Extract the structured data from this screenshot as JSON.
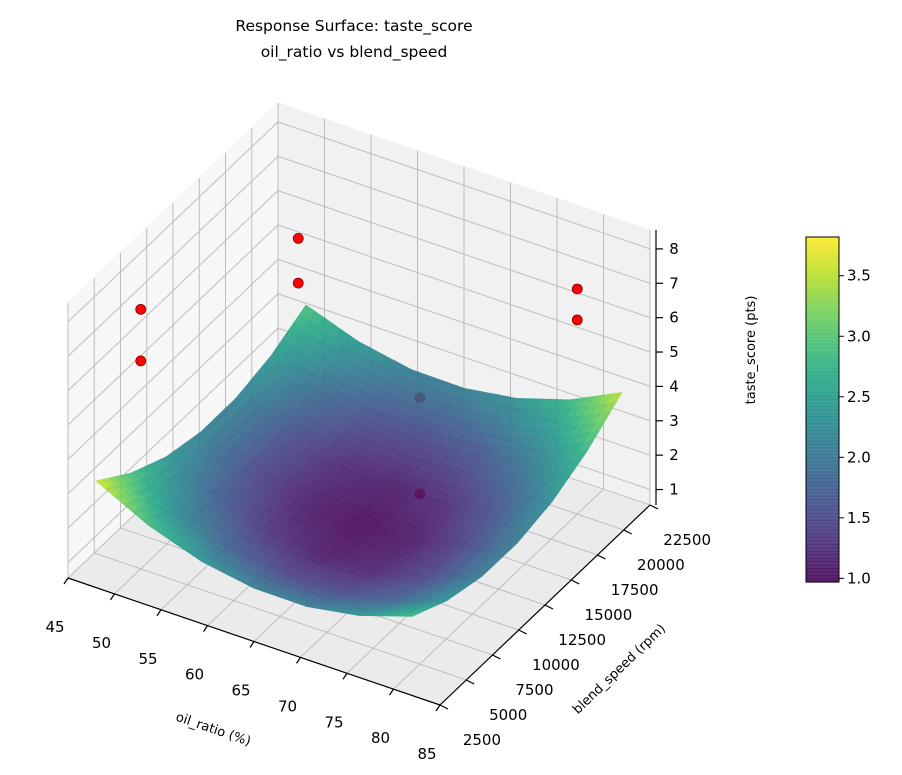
{
  "chart_data": {
    "type": "surface3d",
    "title": [
      "Response Surface: taste_score",
      "oil_ratio vs blend_speed"
    ],
    "xlabel": "oil_ratio (%)",
    "ylabel": "blend_speed (rpm)",
    "zlabel": "taste_score (pts)",
    "xlim": [
      45,
      85
    ],
    "ylim": [
      2500,
      22500
    ],
    "zlim": [
      0.55,
      8.55
    ],
    "x_ticks": [
      "45",
      "50",
      "55",
      "60",
      "65",
      "70",
      "75",
      "80",
      "85"
    ],
    "y_ticks": [
      "2500",
      "5000",
      "7500",
      "10000",
      "12500",
      "15000",
      "17500",
      "20000",
      "22500"
    ],
    "z_ticks": [
      "1",
      "2",
      "3",
      "4",
      "5",
      "6",
      "7",
      "8"
    ],
    "grid": true,
    "colormap": "viridis",
    "surface": {
      "x": [
        48,
        53.67,
        59.33,
        65,
        70.67,
        76.33,
        82
      ],
      "y": [
        2500,
        5833,
        9167,
        12500,
        15833,
        19167,
        22500
      ],
      "z": [
        [
          3.65,
          2.88,
          2.36,
          2.1,
          2.09,
          2.35,
          2.85
        ],
        [
          2.91,
          2.17,
          1.7,
          1.47,
          1.51,
          1.79,
          2.34
        ],
        [
          2.41,
          1.72,
          1.28,
          1.1,
          1.17,
          1.5,
          2.08
        ],
        [
          2.17,
          1.51,
          1.12,
          0.97,
          1.08,
          1.45,
          2.07
        ],
        [
          2.18,
          1.56,
          1.2,
          1.1,
          1.25,
          1.65,
          2.31
        ],
        [
          2.44,
          1.86,
          1.54,
          1.47,
          1.66,
          2.11,
          2.81
        ],
        [
          2.95,
          2.41,
          2.12,
          2.1,
          2.33,
          2.81,
          3.55
        ]
      ]
    },
    "points": [
      {
        "x": 50,
        "y": 5000,
        "z": 8.1
      },
      {
        "x": 50,
        "y": 5000,
        "z": 6.6
      },
      {
        "x": 50,
        "y": 20000,
        "z": 5.8
      },
      {
        "x": 50,
        "y": 20000,
        "z": 4.5
      },
      {
        "x": 80,
        "y": 20000,
        "z": 7.1
      },
      {
        "x": 80,
        "y": 20000,
        "z": 6.2
      },
      {
        "x": 80,
        "y": 5000,
        "z": 8.3
      },
      {
        "x": 80,
        "y": 5000,
        "z": 5.5
      }
    ],
    "point_color": "#ff0000",
    "colorbar": {
      "range": [
        0.97,
        3.82
      ],
      "ticks": [
        "1.0",
        "1.5",
        "2.0",
        "2.5",
        "3.0",
        "3.5"
      ]
    }
  }
}
